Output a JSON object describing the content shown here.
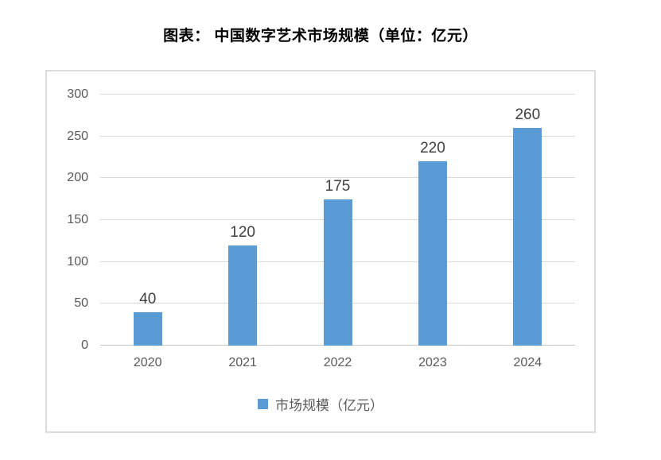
{
  "title": "图表： 中国数字艺术市场规模（单位：亿元）",
  "chart_data": {
    "type": "bar",
    "categories": [
      "2020",
      "2021",
      "2022",
      "2023",
      "2024"
    ],
    "values": [
      40,
      120,
      175,
      220,
      260
    ],
    "series_name": "市场规模（亿元）",
    "title": "图表： 中国数字艺术市场规模（单位：亿元）",
    "xlabel": "",
    "ylabel": "",
    "ylim": [
      0,
      300
    ],
    "yticks": [
      0,
      50,
      100,
      150,
      200,
      250,
      300
    ],
    "grid": true,
    "data_labels": true,
    "legend_position": "bottom"
  },
  "legend": {
    "label": "市场规模（亿元）"
  },
  "colors": {
    "bar": "#5B9BD5",
    "grid": "#D9D9D9",
    "zero_line": "#C6C6C6",
    "axis_text": "#595959",
    "data_label_text": "#404040",
    "chart_border": "#DCDCDC",
    "title_text": "#000000",
    "background": "#FFFFFF"
  }
}
